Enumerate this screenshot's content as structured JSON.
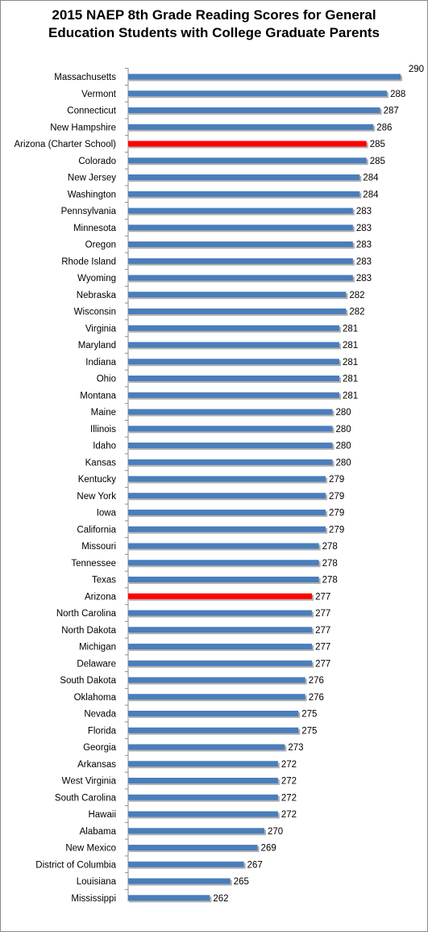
{
  "chart_data": {
    "type": "bar",
    "orientation": "horizontal",
    "title": "2015 NAEP 8th Grade Reading Scores for General\nEducation Students with College Graduate Parents",
    "xlabel": "",
    "ylabel": "",
    "xlim": [
      250,
      290
    ],
    "grid": false,
    "legend": "none",
    "categories": [
      "Massachusetts",
      "Vermont",
      "Connecticut",
      "New Hampshire",
      "Arizona (Charter School)",
      "Colorado",
      "New Jersey",
      "Washington",
      "Pennsylvania",
      "Minnesota",
      "Oregon",
      "Rhode Island",
      "Wyoming",
      "Nebraska",
      "Wisconsin",
      "Virginia",
      "Maryland",
      "Indiana",
      "Ohio",
      "Montana",
      "Maine",
      "Illinois",
      "Idaho",
      "Kansas",
      "Kentucky",
      "New York",
      "Iowa",
      "California",
      "Missouri",
      "Tennessee",
      "Texas",
      "Arizona",
      "North Carolina",
      "North Dakota",
      "Michigan",
      "Delaware",
      "South Dakota",
      "Oklahoma",
      "Nevada",
      "Florida",
      "Georgia",
      "Arkansas",
      "West Virginia",
      "South Carolina",
      "Hawaii",
      "Alabama",
      "New Mexico",
      "District of Columbia",
      "Louisiana",
      "Mississippi"
    ],
    "values": [
      290,
      288,
      287,
      286,
      285,
      285,
      284,
      284,
      283,
      283,
      283,
      283,
      283,
      282,
      282,
      281,
      281,
      281,
      281,
      281,
      280,
      280,
      280,
      280,
      279,
      279,
      279,
      279,
      278,
      278,
      278,
      277,
      277,
      277,
      277,
      277,
      276,
      276,
      275,
      275,
      273,
      272,
      272,
      272,
      272,
      270,
      269,
      267,
      265,
      262
    ],
    "highlighted": [
      "Arizona (Charter School)",
      "Arizona"
    ],
    "colors": {
      "bar": "#4a7ebb",
      "highlight": "#ff0000"
    }
  }
}
